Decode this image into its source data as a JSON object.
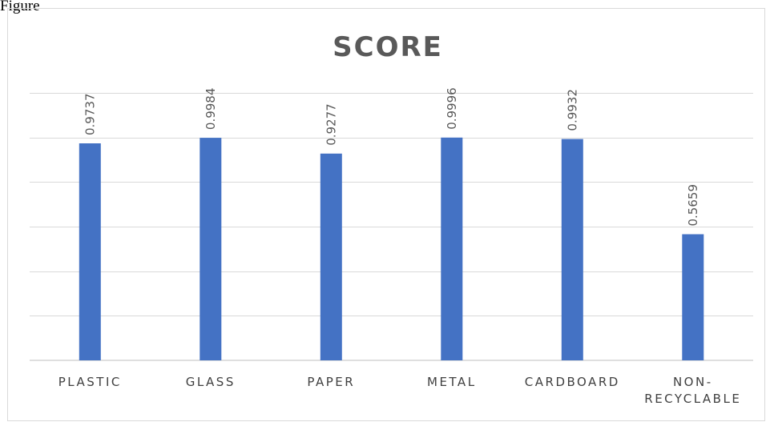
{
  "caption": "Figure",
  "chart_data": {
    "type": "bar",
    "title": "SCORE",
    "categories": [
      "PLASTIC",
      "GLASS",
      "PAPER",
      "METAL",
      "CARDBOARD",
      "NON-RECYCLABLE"
    ],
    "category_lines": [
      [
        "PLASTIC"
      ],
      [
        "GLASS"
      ],
      [
        "PAPER"
      ],
      [
        "METAL"
      ],
      [
        "CARDBOARD"
      ],
      [
        "NON-",
        "RECYCLABLE"
      ]
    ],
    "values": [
      0.9737,
      0.9984,
      0.9277,
      0.9996,
      0.9932,
      0.5659
    ],
    "data_labels": [
      "0.9737",
      "0.9984",
      "0.9277",
      "0.9996",
      "0.9932",
      "0.5659"
    ],
    "xlabel": "",
    "ylabel": "",
    "ylim": [
      0,
      1.2
    ],
    "grid": true,
    "legend": "none",
    "bar_color": "#4472c4"
  }
}
